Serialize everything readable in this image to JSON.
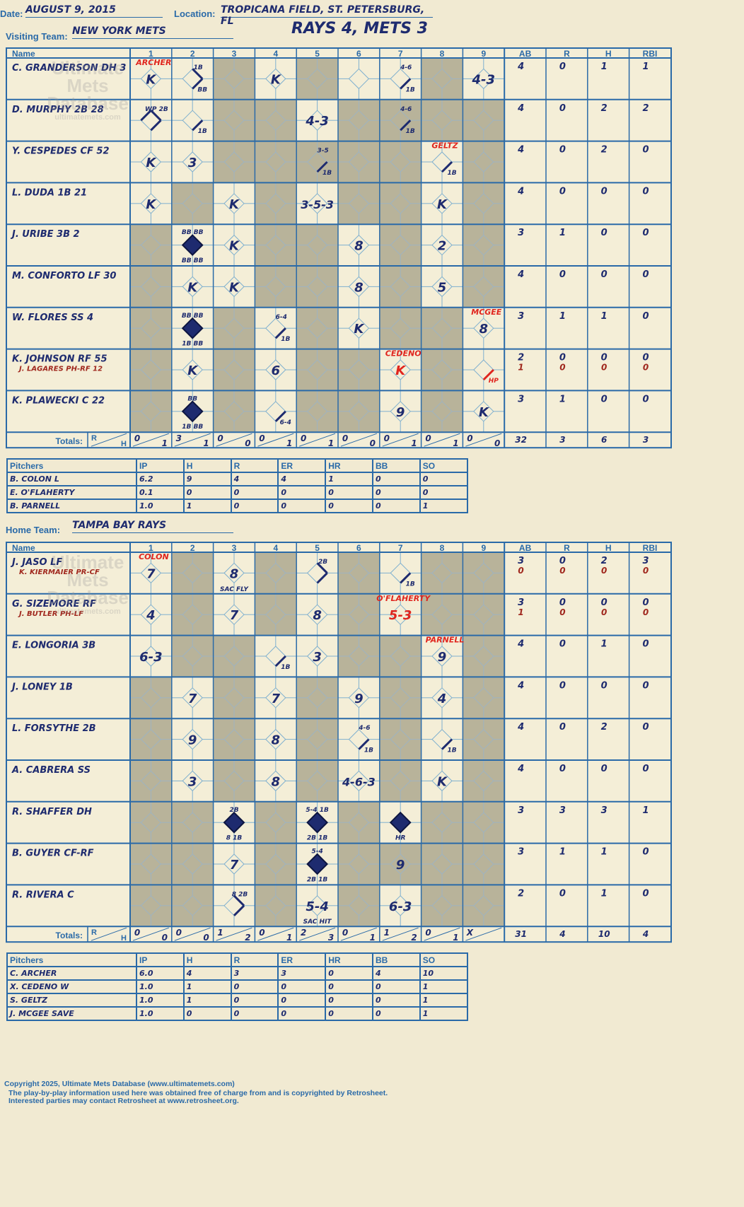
{
  "header": {
    "date_label": "Date:",
    "date": "AUGUST 9, 2015",
    "location_label": "Location:",
    "location": "TROPICANA FIELD, ST. PETERSBURG, FL",
    "result": "RAYS 4, METS 3",
    "visiting_label": "Visiting Team:",
    "visiting_team": "NEW YORK METS",
    "home_label": "Home Team:",
    "home_team": "TAMPA BAY RAYS"
  },
  "columns": {
    "name": "Name",
    "innings": [
      "1",
      "2",
      "3",
      "4",
      "5",
      "6",
      "7",
      "8",
      "9"
    ],
    "stats": [
      "AB",
      "R",
      "H",
      "RBI"
    ]
  },
  "totals_label": "Totals:",
  "totals_r": "R",
  "totals_h": "H",
  "watermark": [
    "Ultimate",
    "Mets",
    "Database",
    "ultimatemets.com"
  ],
  "visiting": {
    "shaded": [
      [
        0,
        0,
        1,
        0,
        1,
        0,
        0,
        1,
        0
      ],
      [
        0,
        0,
        1,
        1,
        0,
        1,
        1,
        1,
        1
      ],
      [
        0,
        0,
        1,
        1,
        1,
        1,
        1,
        0,
        1
      ],
      [
        0,
        1,
        0,
        1,
        0,
        1,
        1,
        0,
        1
      ],
      [
        1,
        0,
        0,
        1,
        1,
        0,
        1,
        0,
        1
      ],
      [
        1,
        0,
        0,
        1,
        1,
        0,
        1,
        0,
        1
      ],
      [
        1,
        0,
        1,
        0,
        1,
        0,
        1,
        1,
        0
      ],
      [
        1,
        0,
        1,
        0,
        1,
        1,
        0,
        1,
        0
      ],
      [
        1,
        0,
        1,
        0,
        1,
        1,
        0,
        1,
        0
      ]
    ],
    "batters": [
      {
        "name": "C. GRANDERSON DH 3",
        "sub": "",
        "ab": "4",
        "r": "0",
        "h": "1",
        "rbi": "1"
      },
      {
        "name": "D. MURPHY 2B 28",
        "sub": "",
        "ab": "4",
        "r": "0",
        "h": "2",
        "rbi": "2"
      },
      {
        "name": "Y. CESPEDES CF 52",
        "sub": "",
        "ab": "4",
        "r": "0",
        "h": "2",
        "rbi": "0"
      },
      {
        "name": "L. DUDA 1B 21",
        "sub": "",
        "ab": "4",
        "r": "0",
        "h": "0",
        "rbi": "0"
      },
      {
        "name": "J. URIBE 3B 2",
        "sub": "",
        "ab": "3",
        "r": "1",
        "h": "0",
        "rbi": "0"
      },
      {
        "name": "M. CONFORTO LF 30",
        "sub": "",
        "ab": "4",
        "r": "0",
        "h": "0",
        "rbi": "0"
      },
      {
        "name": "W. FLORES SS 4",
        "sub": "",
        "ab": "3",
        "r": "1",
        "h": "1",
        "rbi": "0"
      },
      {
        "name": "K. JOHNSON RF 55",
        "sub": "J. LAGARES PH-RF 12",
        "ab": "2",
        "r": "0",
        "h": "0",
        "rbi": "0",
        "sub_ab": "1",
        "sub_r": "0",
        "sub_h": "0",
        "sub_rbi": "0"
      },
      {
        "name": "K. PLAWECKI C 22",
        "sub": "",
        "ab": "3",
        "r": "1",
        "h": "0",
        "rbi": "0"
      }
    ],
    "plays": [
      {
        "row": 0,
        "col": 0,
        "text": "K",
        "type": "out"
      },
      {
        "row": 0,
        "col": 1,
        "text": "1B",
        "type": "hit",
        "sub": "BB",
        "paths": 2
      },
      {
        "row": 0,
        "col": 3,
        "text": "K",
        "type": "out"
      },
      {
        "row": 0,
        "col": 6,
        "text": "4-6",
        "type": "hit",
        "sub": "1B"
      },
      {
        "row": 0,
        "col": 8,
        "text": "4-3",
        "type": "out"
      },
      {
        "row": 1,
        "col": 0,
        "text": "WP 2B",
        "type": "hit",
        "paths": 3
      },
      {
        "row": 1,
        "col": 1,
        "text": "",
        "type": "hit",
        "sub": "1B"
      },
      {
        "row": 1,
        "col": 4,
        "text": "4-3",
        "type": "out"
      },
      {
        "row": 1,
        "col": 6,
        "text": "4-6",
        "type": "hit",
        "sub": "1B"
      },
      {
        "row": 2,
        "col": 0,
        "text": "K",
        "type": "out"
      },
      {
        "row": 2,
        "col": 1,
        "text": "3",
        "type": "out"
      },
      {
        "row": 2,
        "col": 4,
        "text": "3-5",
        "type": "hit",
        "sub": "1B"
      },
      {
        "row": 2,
        "col": 7,
        "text": "",
        "type": "hit",
        "sub": "1B"
      },
      {
        "row": 3,
        "col": 0,
        "text": "K",
        "type": "out"
      },
      {
        "row": 3,
        "col": 2,
        "text": "K",
        "type": "out"
      },
      {
        "row": 3,
        "col": 4,
        "text": "3-5-3",
        "type": "out"
      },
      {
        "row": 3,
        "col": 7,
        "text": "K",
        "type": "out"
      },
      {
        "row": 4,
        "col": 1,
        "text": "BB BB",
        "type": "run",
        "sub": "BB BB"
      },
      {
        "row": 4,
        "col": 2,
        "text": "K",
        "type": "out"
      },
      {
        "row": 4,
        "col": 5,
        "text": "8",
        "type": "out"
      },
      {
        "row": 4,
        "col": 7,
        "text": "2",
        "type": "out"
      },
      {
        "row": 5,
        "col": 1,
        "text": "K",
        "type": "out"
      },
      {
        "row": 5,
        "col": 2,
        "text": "K",
        "type": "out"
      },
      {
        "row": 5,
        "col": 5,
        "text": "8",
        "type": "out"
      },
      {
        "row": 5,
        "col": 7,
        "text": "5",
        "type": "out"
      },
      {
        "row": 6,
        "col": 1,
        "text": "BB BB",
        "type": "run",
        "sub": "1B BB"
      },
      {
        "row": 6,
        "col": 3,
        "text": "6-4",
        "type": "hit",
        "sub": "1B"
      },
      {
        "row": 6,
        "col": 5,
        "text": "K",
        "type": "out"
      },
      {
        "row": 6,
        "col": 8,
        "text": "8",
        "type": "out"
      },
      {
        "row": 7,
        "col": 1,
        "text": "K",
        "type": "out"
      },
      {
        "row": 7,
        "col": 3,
        "text": "6",
        "type": "out"
      },
      {
        "row": 7,
        "col": 6,
        "text": "K",
        "type": "outred"
      },
      {
        "row": 7,
        "col": 8,
        "text": "",
        "type": "hitred",
        "sub": "HP"
      },
      {
        "row": 8,
        "col": 1,
        "text": "BB",
        "type": "run",
        "sub": "1B BB"
      },
      {
        "row": 8,
        "col": 3,
        "text": "",
        "type": "hit",
        "sub": "6-4"
      },
      {
        "row": 8,
        "col": 6,
        "text": "9",
        "type": "out"
      },
      {
        "row": 8,
        "col": 8,
        "text": "K",
        "type": "out"
      }
    ],
    "pitcher_change": [
      {
        "row": 0,
        "col": 0,
        "text": "ARCHER"
      },
      {
        "row": 2,
        "col": 7,
        "text": "GELTZ"
      },
      {
        "row": 6,
        "col": 8,
        "text": "MCGEE"
      },
      {
        "row": 7,
        "col": 6,
        "text": "CEDENO"
      }
    ],
    "inning_totals": [
      [
        "0",
        "1"
      ],
      [
        "3",
        "1"
      ],
      [
        "0",
        "0"
      ],
      [
        "0",
        "1"
      ],
      [
        "0",
        "1"
      ],
      [
        "0",
        "0"
      ],
      [
        "0",
        "1"
      ],
      [
        "0",
        "1"
      ],
      [
        "0",
        "0"
      ]
    ],
    "totals": {
      "ab": "32",
      "r": "3",
      "h": "6",
      "rbi": "3"
    },
    "pitchers_header": [
      "Pitchers",
      "IP",
      "H",
      "R",
      "ER",
      "HR",
      "BB",
      "SO"
    ],
    "pitchers": [
      [
        "B. COLON L",
        "6.2",
        "9",
        "4",
        "4",
        "1",
        "0",
        "0"
      ],
      [
        "E. O'FLAHERTY",
        "0.1",
        "0",
        "0",
        "0",
        "0",
        "0",
        "0"
      ],
      [
        "B. PARNELL",
        "1.0",
        "1",
        "0",
        "0",
        "0",
        "0",
        "1"
      ]
    ]
  },
  "home": {
    "shaded": [
      [
        0,
        1,
        0,
        1,
        0,
        1,
        0,
        1,
        1
      ],
      [
        0,
        1,
        0,
        1,
        0,
        1,
        0,
        1,
        1
      ],
      [
        0,
        1,
        1,
        0,
        0,
        1,
        1,
        0,
        1
      ],
      [
        1,
        0,
        1,
        0,
        1,
        0,
        1,
        0,
        1
      ],
      [
        1,
        0,
        1,
        0,
        1,
        0,
        1,
        0,
        1
      ],
      [
        1,
        0,
        1,
        0,
        1,
        0,
        1,
        0,
        1
      ],
      [
        1,
        1,
        0,
        1,
        0,
        1,
        0,
        1,
        1
      ],
      [
        1,
        1,
        0,
        1,
        0,
        1,
        1,
        1,
        1
      ],
      [
        1,
        1,
        0,
        1,
        0,
        1,
        0,
        1,
        1
      ]
    ],
    "batters": [
      {
        "name": "J. JASO LF",
        "sub": "K. KIERMAIER PR-CF",
        "ab": "3",
        "r": "0",
        "h": "2",
        "rbi": "3",
        "sub_ab": "0",
        "sub_r": "0",
        "sub_h": "0",
        "sub_rbi": "0"
      },
      {
        "name": "G. SIZEMORE RF",
        "sub": "J. BUTLER PH-LF",
        "ab": "3",
        "r": "0",
        "h": "0",
        "rbi": "0",
        "sub_ab": "1",
        "sub_r": "0",
        "sub_h": "0",
        "sub_rbi": "0"
      },
      {
        "name": "E. LONGORIA 3B",
        "sub": "",
        "ab": "4",
        "r": "0",
        "h": "1",
        "rbi": "0"
      },
      {
        "name": "J. LONEY 1B",
        "sub": "",
        "ab": "4",
        "r": "0",
        "h": "0",
        "rbi": "0"
      },
      {
        "name": "L. FORSYTHE 2B",
        "sub": "",
        "ab": "4",
        "r": "0",
        "h": "2",
        "rbi": "0"
      },
      {
        "name": "A. CABRERA SS",
        "sub": "",
        "ab": "4",
        "r": "0",
        "h": "0",
        "rbi": "0"
      },
      {
        "name": "R. SHAFFER DH",
        "sub": "",
        "ab": "3",
        "r": "3",
        "h": "3",
        "rbi": "1"
      },
      {
        "name": "B. GUYER CF-RF",
        "sub": "",
        "ab": "3",
        "r": "1",
        "h": "1",
        "rbi": "0"
      },
      {
        "name": "R. RIVERA C",
        "sub": "",
        "ab": "2",
        "r": "0",
        "h": "1",
        "rbi": "0"
      }
    ],
    "plays": [
      {
        "row": 0,
        "col": 0,
        "text": "7",
        "type": "out"
      },
      {
        "row": 0,
        "col": 2,
        "text": "8",
        "type": "out",
        "sub": "SAC FLY"
      },
      {
        "row": 0,
        "col": 4,
        "text": "2B",
        "type": "hit",
        "paths": 2
      },
      {
        "row": 0,
        "col": 6,
        "text": "",
        "type": "hit",
        "sub": "1B"
      },
      {
        "row": 1,
        "col": 0,
        "text": "4",
        "type": "out"
      },
      {
        "row": 1,
        "col": 2,
        "text": "7",
        "type": "out"
      },
      {
        "row": 1,
        "col": 4,
        "text": "8",
        "type": "out"
      },
      {
        "row": 1,
        "col": 6,
        "text": "5-3",
        "type": "outred"
      },
      {
        "row": 2,
        "col": 0,
        "text": "6-3",
        "type": "out"
      },
      {
        "row": 2,
        "col": 3,
        "text": "",
        "type": "hit",
        "sub": "1B"
      },
      {
        "row": 2,
        "col": 4,
        "text": "3",
        "type": "out"
      },
      {
        "row": 2,
        "col": 7,
        "text": "9",
        "type": "out"
      },
      {
        "row": 3,
        "col": 1,
        "text": "7",
        "type": "out"
      },
      {
        "row": 3,
        "col": 3,
        "text": "7",
        "type": "out"
      },
      {
        "row": 3,
        "col": 5,
        "text": "9",
        "type": "out"
      },
      {
        "row": 3,
        "col": 7,
        "text": "4",
        "type": "out"
      },
      {
        "row": 4,
        "col": 1,
        "text": "9",
        "type": "out"
      },
      {
        "row": 4,
        "col": 3,
        "text": "8",
        "type": "out"
      },
      {
        "row": 4,
        "col": 5,
        "text": "4-6",
        "type": "hit",
        "sub": "1B"
      },
      {
        "row": 4,
        "col": 7,
        "text": "",
        "type": "hit",
        "sub": "1B"
      },
      {
        "row": 5,
        "col": 1,
        "text": "3",
        "type": "out"
      },
      {
        "row": 5,
        "col": 3,
        "text": "8",
        "type": "out"
      },
      {
        "row": 5,
        "col": 5,
        "text": "4-6-3",
        "type": "out"
      },
      {
        "row": 5,
        "col": 7,
        "text": "K",
        "type": "out"
      },
      {
        "row": 6,
        "col": 2,
        "text": "2B",
        "type": "run",
        "sub": "8 1B"
      },
      {
        "row": 6,
        "col": 4,
        "text": "5-4 1B",
        "type": "run",
        "sub": "2B 1B"
      },
      {
        "row": 6,
        "col": 6,
        "text": "",
        "type": "run",
        "sub": "HR"
      },
      {
        "row": 7,
        "col": 2,
        "text": "7",
        "type": "out"
      },
      {
        "row": 7,
        "col": 4,
        "text": "5-4",
        "type": "run",
        "sub": "2B 1B"
      },
      {
        "row": 7,
        "col": 6,
        "text": "9",
        "type": "out"
      },
      {
        "row": 8,
        "col": 2,
        "text": "8 2B",
        "type": "hit",
        "paths": 2
      },
      {
        "row": 8,
        "col": 4,
        "text": "5-4",
        "type": "out",
        "sub": "SAC HIT"
      },
      {
        "row": 8,
        "col": 6,
        "text": "6-3",
        "type": "out"
      }
    ],
    "pitcher_change": [
      {
        "row": 0,
        "col": 0,
        "text": "COLON"
      },
      {
        "row": 1,
        "col": 6,
        "text": "O'FLAHERTY"
      },
      {
        "row": 2,
        "col": 7,
        "text": "PARNELL"
      }
    ],
    "inning_totals": [
      [
        "0",
        "0"
      ],
      [
        "0",
        "0"
      ],
      [
        "1",
        "2"
      ],
      [
        "0",
        "1"
      ],
      [
        "2",
        "3"
      ],
      [
        "0",
        "1"
      ],
      [
        "1",
        "2"
      ],
      [
        "0",
        "1"
      ],
      [
        "X",
        ""
      ]
    ],
    "totals": {
      "ab": "31",
      "r": "4",
      "h": "10",
      "rbi": "4"
    },
    "pitchers_header": [
      "Pitchers",
      "IP",
      "H",
      "R",
      "ER",
      "HR",
      "BB",
      "SO"
    ],
    "pitchers": [
      [
        "C. ARCHER",
        "6.0",
        "4",
        "3",
        "3",
        "0",
        "4",
        "10"
      ],
      [
        "X. CEDENO W",
        "1.0",
        "1",
        "0",
        "0",
        "0",
        "0",
        "1"
      ],
      [
        "S. GELTZ",
        "1.0",
        "1",
        "0",
        "0",
        "0",
        "0",
        "1"
      ],
      [
        "J. MCGEE SAVE",
        "1.0",
        "0",
        "0",
        "0",
        "0",
        "0",
        "1"
      ]
    ]
  },
  "footer": {
    "line1": "Copyright 2025, Ultimate Mets Database (www.ultimatemets.com)",
    "line2": "The play-by-play information used here was obtained free of charge from and is copyrighted by Retrosheet.",
    "line3": "Interested parties may contact Retrosheet at www.retrosheet.org."
  }
}
